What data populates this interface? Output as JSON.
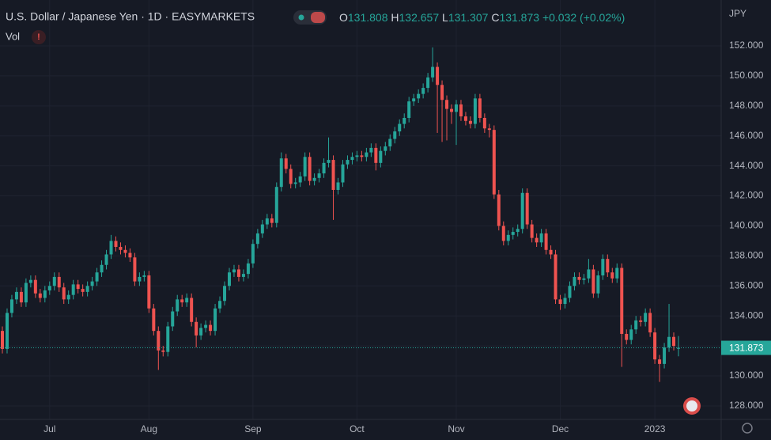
{
  "chart_data": {
    "type": "candlestick",
    "title": "U.S. Dollar / Japanese Yen · 1D · EASYMARKETS",
    "volume_label": "Vol",
    "currency": "JPY",
    "ohlc_labels": [
      "O",
      "H",
      "L",
      "C"
    ],
    "change": "+0.032",
    "change_percent": "(+0.02%)",
    "up_color": "#26a69a",
    "down_color": "#ef5350",
    "grid": true,
    "ylim": [
      127.1,
      155.06
    ],
    "yticks": [
      {
        "value": 128,
        "label": "128.000"
      },
      {
        "value": 130,
        "label": "130.000"
      },
      {
        "value": 132,
        "label": "132.000"
      },
      {
        "value": 134,
        "label": "134.000"
      },
      {
        "value": 136,
        "label": "136.000"
      },
      {
        "value": 138,
        "label": "138.000"
      },
      {
        "value": 140,
        "label": "140.000"
      },
      {
        "value": 142,
        "label": "142.000"
      },
      {
        "value": 144,
        "label": "144.000"
      },
      {
        "value": 146,
        "label": "146.000"
      },
      {
        "value": 148,
        "label": "148.000"
      },
      {
        "value": 150,
        "label": "150.000"
      },
      {
        "value": 152,
        "label": "152.000"
      }
    ],
    "categories": [
      null,
      null,
      null,
      null,
      null,
      null,
      null,
      null,
      null,
      null,
      "Jul",
      null,
      null,
      null,
      null,
      null,
      null,
      null,
      null,
      null,
      null,
      null,
      null,
      null,
      null,
      null,
      null,
      null,
      null,
      null,
      null,
      "Aug",
      null,
      null,
      null,
      null,
      null,
      null,
      null,
      null,
      null,
      null,
      null,
      null,
      null,
      null,
      null,
      null,
      null,
      null,
      null,
      null,
      null,
      "Sep",
      null,
      null,
      null,
      null,
      null,
      null,
      null,
      null,
      null,
      null,
      null,
      null,
      null,
      null,
      null,
      null,
      null,
      null,
      null,
      null,
      null,
      "Oct",
      null,
      null,
      null,
      null,
      null,
      null,
      null,
      null,
      null,
      null,
      null,
      null,
      null,
      null,
      null,
      null,
      null,
      null,
      null,
      null,
      "Nov",
      null,
      null,
      null,
      null,
      null,
      null,
      null,
      null,
      null,
      null,
      null,
      null,
      null,
      null,
      null,
      null,
      null,
      null,
      null,
      null,
      null,
      "Dec",
      null,
      null,
      null,
      null,
      null,
      null,
      null,
      null,
      null,
      null,
      null,
      null,
      null,
      null,
      null,
      null,
      null,
      null,
      null,
      "2023",
      null,
      null,
      null,
      null,
      null
    ],
    "open": [
      133.0,
      131.8,
      134.2,
      135.1,
      135.6,
      134.9,
      136.2,
      136.4,
      135.5,
      135.2,
      135.7,
      136.0,
      136.6,
      135.9,
      135.1,
      135.4,
      136.1,
      135.8,
      135.6,
      136.0,
      136.3,
      136.9,
      137.4,
      138.1,
      139.0,
      138.6,
      138.4,
      138.2,
      137.9,
      136.3,
      136.6,
      136.7,
      134.5,
      133.0,
      131.7,
      131.6,
      133.3,
      134.3,
      135.1,
      134.9,
      135.2,
      133.6,
      132.7,
      133.2,
      133.4,
      133.0,
      134.5,
      135.0,
      136.0,
      136.9,
      137.1,
      136.6,
      136.8,
      137.5,
      138.8,
      139.5,
      140.1,
      140.5,
      140.2,
      142.6,
      144.5,
      143.8,
      142.8,
      142.9,
      143.3,
      144.6,
      143.0,
      143.2,
      143.5,
      144.2,
      144.4,
      142.4,
      142.9,
      144.1,
      144.4,
      144.6,
      144.7,
      144.6,
      144.9,
      145.2,
      144.2,
      145.0,
      145.3,
      145.8,
      146.3,
      146.8,
      147.2,
      148.3,
      148.5,
      148.8,
      149.2,
      149.9,
      150.6,
      149.4,
      148.4,
      147.8,
      147.6,
      148.1,
      147.3,
      147.0,
      146.8,
      148.5,
      147.2,
      146.5,
      146.4,
      142.1,
      140.0,
      139.0,
      139.4,
      139.6,
      139.8,
      142.2,
      140.1,
      139.2,
      138.9,
      139.5,
      138.4,
      138.1,
      135.1,
      134.8,
      135.2,
      136.0,
      136.6,
      136.4,
      136.5,
      137.1,
      135.5,
      136.7,
      137.8,
      136.9,
      136.5,
      137.2,
      132.8,
      132.4,
      133.1,
      133.7,
      133.6,
      134.2,
      132.9,
      131.1,
      130.8,
      131.9,
      132.6,
      131.808
    ],
    "high": [
      133.3,
      134.5,
      135.4,
      135.9,
      135.9,
      136.5,
      136.7,
      136.7,
      135.8,
      136.0,
      136.3,
      136.9,
      136.9,
      136.2,
      135.7,
      136.4,
      136.4,
      136.1,
      136.3,
      136.6,
      137.2,
      137.7,
      138.4,
      139.4,
      139.3,
      138.9,
      138.7,
      138.5,
      138.2,
      136.9,
      137.0,
      137.0,
      134.8,
      133.3,
      132.0,
      133.6,
      134.6,
      135.4,
      135.4,
      135.5,
      135.5,
      133.9,
      133.5,
      133.7,
      133.7,
      134.8,
      135.3,
      136.3,
      137.2,
      137.4,
      137.4,
      137.1,
      137.8,
      139.1,
      139.8,
      140.4,
      140.8,
      140.8,
      142.9,
      144.9,
      144.8,
      144.1,
      143.2,
      143.6,
      144.9,
      144.9,
      143.5,
      143.8,
      144.5,
      145.9,
      144.7,
      143.2,
      144.4,
      144.7,
      144.9,
      145.0,
      145.0,
      145.2,
      145.5,
      145.5,
      145.3,
      145.6,
      146.1,
      146.6,
      147.1,
      147.5,
      148.6,
      148.8,
      149.1,
      149.5,
      150.2,
      151.9,
      150.9,
      149.7,
      148.7,
      148.1,
      148.4,
      148.4,
      147.6,
      147.3,
      148.8,
      148.8,
      147.5,
      146.8,
      146.7,
      142.4,
      140.3,
      139.7,
      139.9,
      140.1,
      142.5,
      142.5,
      140.4,
      139.5,
      139.8,
      139.8,
      138.7,
      138.4,
      135.4,
      135.5,
      136.3,
      136.9,
      136.9,
      136.8,
      137.8,
      137.4,
      137.0,
      138.1,
      138.1,
      137.2,
      137.5,
      137.5,
      133.1,
      133.4,
      134.0,
      134.0,
      134.5,
      134.5,
      133.2,
      131.4,
      132.2,
      134.8,
      132.9,
      132.657
    ],
    "low": [
      131.5,
      131.5,
      133.9,
      134.8,
      134.6,
      134.6,
      135.9,
      135.2,
      134.9,
      134.9,
      135.4,
      135.7,
      135.6,
      134.8,
      134.8,
      135.1,
      135.5,
      135.3,
      135.3,
      135.7,
      136.0,
      136.6,
      137.1,
      137.8,
      138.3,
      138.1,
      137.9,
      137.6,
      136.0,
      136.0,
      136.3,
      134.2,
      132.7,
      130.4,
      131.3,
      131.3,
      133.0,
      134.0,
      134.6,
      134.6,
      133.3,
      131.9,
      132.4,
      132.9,
      132.7,
      132.7,
      134.2,
      134.7,
      135.7,
      136.6,
      136.3,
      136.3,
      136.5,
      137.2,
      138.5,
      139.2,
      139.8,
      139.9,
      139.9,
      142.3,
      143.5,
      142.5,
      142.5,
      142.6,
      143.0,
      142.7,
      142.7,
      142.9,
      143.2,
      143.9,
      140.4,
      142.1,
      142.6,
      143.8,
      144.1,
      144.3,
      144.3,
      144.3,
      144.6,
      143.7,
      143.9,
      144.7,
      145.0,
      145.5,
      146.0,
      146.5,
      146.9,
      148.0,
      148.2,
      148.5,
      148.9,
      149.6,
      146.2,
      145.6,
      145.7,
      146.8,
      145.4,
      147.0,
      146.7,
      146.5,
      146.5,
      146.9,
      146.2,
      145.9,
      141.8,
      139.7,
      138.7,
      138.7,
      139.1,
      139.3,
      139.5,
      139.8,
      138.9,
      138.6,
      138.6,
      138.1,
      137.8,
      134.8,
      134.4,
      134.5,
      134.9,
      135.7,
      136.1,
      136.1,
      136.2,
      135.2,
      135.2,
      136.4,
      136.6,
      136.2,
      136.2,
      130.6,
      132.1,
      132.1,
      132.8,
      133.3,
      133.3,
      132.6,
      130.8,
      129.6,
      130.5,
      131.6,
      131.7,
      131.307
    ],
    "close": [
      131.8,
      134.2,
      135.1,
      135.6,
      134.9,
      136.2,
      136.4,
      135.5,
      135.2,
      135.7,
      136.0,
      136.6,
      135.9,
      135.1,
      135.4,
      136.1,
      135.8,
      135.6,
      136.0,
      136.3,
      136.9,
      137.4,
      138.1,
      139.0,
      138.6,
      138.4,
      138.2,
      137.9,
      136.3,
      136.6,
      136.7,
      134.5,
      133.0,
      131.7,
      131.6,
      133.3,
      134.3,
      135.1,
      134.9,
      135.2,
      133.6,
      132.7,
      133.2,
      133.4,
      133.0,
      134.5,
      135.0,
      136.0,
      136.9,
      137.1,
      136.6,
      136.8,
      137.5,
      138.8,
      139.5,
      140.1,
      140.5,
      140.2,
      142.6,
      144.5,
      143.8,
      142.8,
      142.9,
      143.3,
      144.6,
      143.0,
      143.2,
      143.5,
      144.2,
      144.4,
      142.4,
      142.9,
      144.1,
      144.4,
      144.6,
      144.7,
      144.6,
      144.9,
      145.2,
      144.2,
      145.0,
      145.3,
      145.8,
      146.3,
      146.8,
      147.2,
      148.3,
      148.5,
      148.8,
      149.2,
      149.9,
      150.6,
      149.4,
      148.4,
      147.8,
      147.6,
      148.1,
      147.3,
      147.0,
      146.8,
      148.5,
      147.2,
      146.5,
      146.4,
      142.1,
      140.0,
      139.0,
      139.4,
      139.6,
      139.8,
      142.2,
      140.1,
      139.2,
      138.9,
      139.5,
      138.4,
      138.1,
      135.1,
      134.8,
      135.2,
      136.0,
      136.6,
      136.4,
      136.5,
      137.1,
      135.5,
      136.7,
      137.8,
      136.9,
      136.5,
      137.2,
      132.8,
      132.4,
      133.1,
      133.7,
      133.6,
      134.2,
      132.9,
      131.1,
      130.8,
      131.9,
      132.6,
      132.0,
      131.873
    ]
  }
}
